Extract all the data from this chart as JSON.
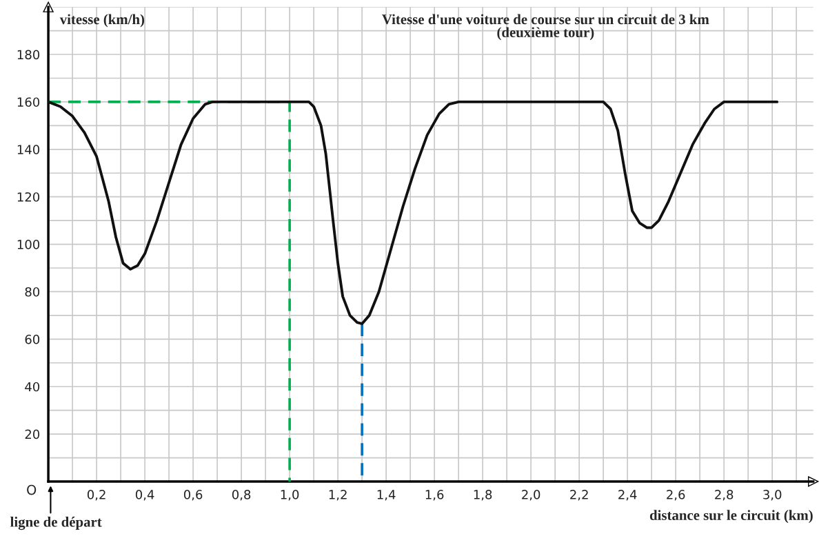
{
  "chart_data": {
    "type": "line",
    "title": "Vitesse d'une voiture de course sur un circuit de 3 km\n(deuxième tour)",
    "xlabel": "distance sur le circuit (km)",
    "ylabel": "vitesse (km/h)",
    "series": [
      {
        "color": "#111111",
        "x": [
          0,
          0.05,
          0.1,
          0.15,
          0.2,
          0.25,
          0.28,
          0.31,
          0.34,
          0.37,
          0.4,
          0.45,
          0.5,
          0.55,
          0.6,
          0.65,
          0.68,
          1.08,
          1.1,
          1.13,
          1.15,
          1.18,
          1.2,
          1.22,
          1.25,
          1.28,
          1.3,
          1.33,
          1.37,
          1.42,
          1.47,
          1.52,
          1.57,
          1.62,
          1.66,
          1.7,
          2.3,
          2.33,
          2.36,
          2.39,
          2.42,
          2.45,
          2.48,
          2.5,
          2.53,
          2.57,
          2.62,
          2.67,
          2.72,
          2.76,
          2.8,
          3.02
        ],
        "values": [
          160,
          158,
          154,
          147,
          137,
          118,
          103,
          92,
          89.5,
          91,
          96,
          110,
          126,
          142,
          153,
          159,
          160,
          160,
          158,
          150,
          138,
          110,
          92,
          78,
          70,
          67,
          66.5,
          70,
          80,
          98,
          116,
          132,
          146,
          155,
          159,
          160,
          160,
          157,
          148,
          130,
          114,
          109,
          107,
          107,
          110,
          118,
          130,
          142,
          151,
          157,
          160,
          160
        ]
      },
      {
        "color": "#00b050",
        "line_style": "dashed",
        "x": [
          0,
          1.0,
          1.0
        ],
        "values": [
          160,
          160,
          0
        ]
      },
      {
        "color": "#0070c0",
        "line_style": "dashed",
        "x": [
          1.3,
          1.3
        ],
        "values": [
          66.5,
          0
        ]
      }
    ],
    "xlim": [
      0,
      3.17
    ],
    "ylim": [
      0,
      200
    ],
    "xticks": [
      {
        "value": 0.2,
        "label": "0,2"
      },
      {
        "value": 0.4,
        "label": "0,4"
      },
      {
        "value": 0.6,
        "label": "0,6"
      },
      {
        "value": 0.8,
        "label": "0,8"
      },
      {
        "value": 1.0,
        "label": "1,0"
      },
      {
        "value": 1.2,
        "label": "1,2"
      },
      {
        "value": 1.4,
        "label": "1,4"
      },
      {
        "value": 1.6,
        "label": "1,6"
      },
      {
        "value": 1.8,
        "label": "1,8"
      },
      {
        "value": 2.0,
        "label": "2,0"
      },
      {
        "value": 2.2,
        "label": "2,2"
      },
      {
        "value": 2.4,
        "label": "2,4"
      },
      {
        "value": 2.6,
        "label": "2,6"
      },
      {
        "value": 2.8,
        "label": "2,8"
      },
      {
        "value": 3.0,
        "label": "3,0"
      }
    ],
    "yticks": [
      20,
      40,
      60,
      80,
      100,
      120,
      140,
      160,
      180
    ],
    "grid": true,
    "line_style": "solid",
    "marker": "none",
    "annotations": [
      "O",
      "ligne de départ"
    ]
  }
}
